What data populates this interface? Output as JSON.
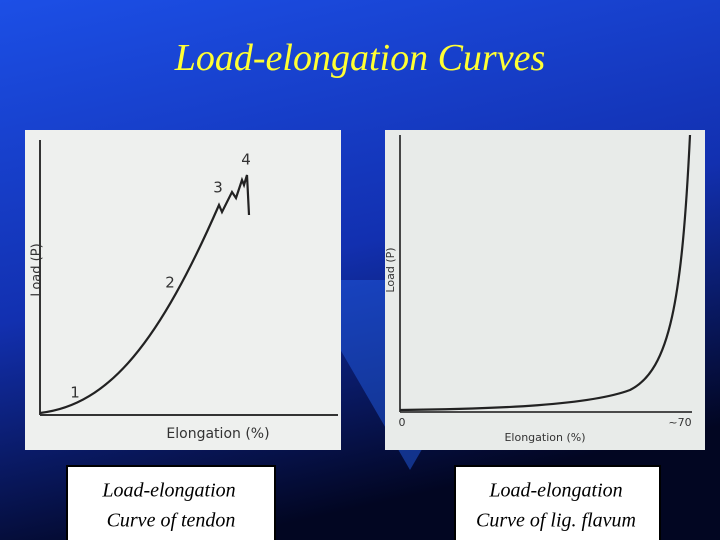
{
  "title": "Load-elongation Curves",
  "figures": [
    {
      "y_axis_label": "Load (P)",
      "x_axis_label": "Elongation (%)",
      "point_labels": [
        "1",
        "2",
        "3",
        "4"
      ],
      "caption": [
        "Load-elongation",
        "Curve of tendon"
      ]
    },
    {
      "y_axis_label": "Load (P)",
      "x_axis_label": "Elongation (%)",
      "x_tick_labels": [
        "0",
        "~70"
      ],
      "caption": [
        "Load-elongation",
        "Curve of lig. flavum"
      ]
    }
  ]
}
